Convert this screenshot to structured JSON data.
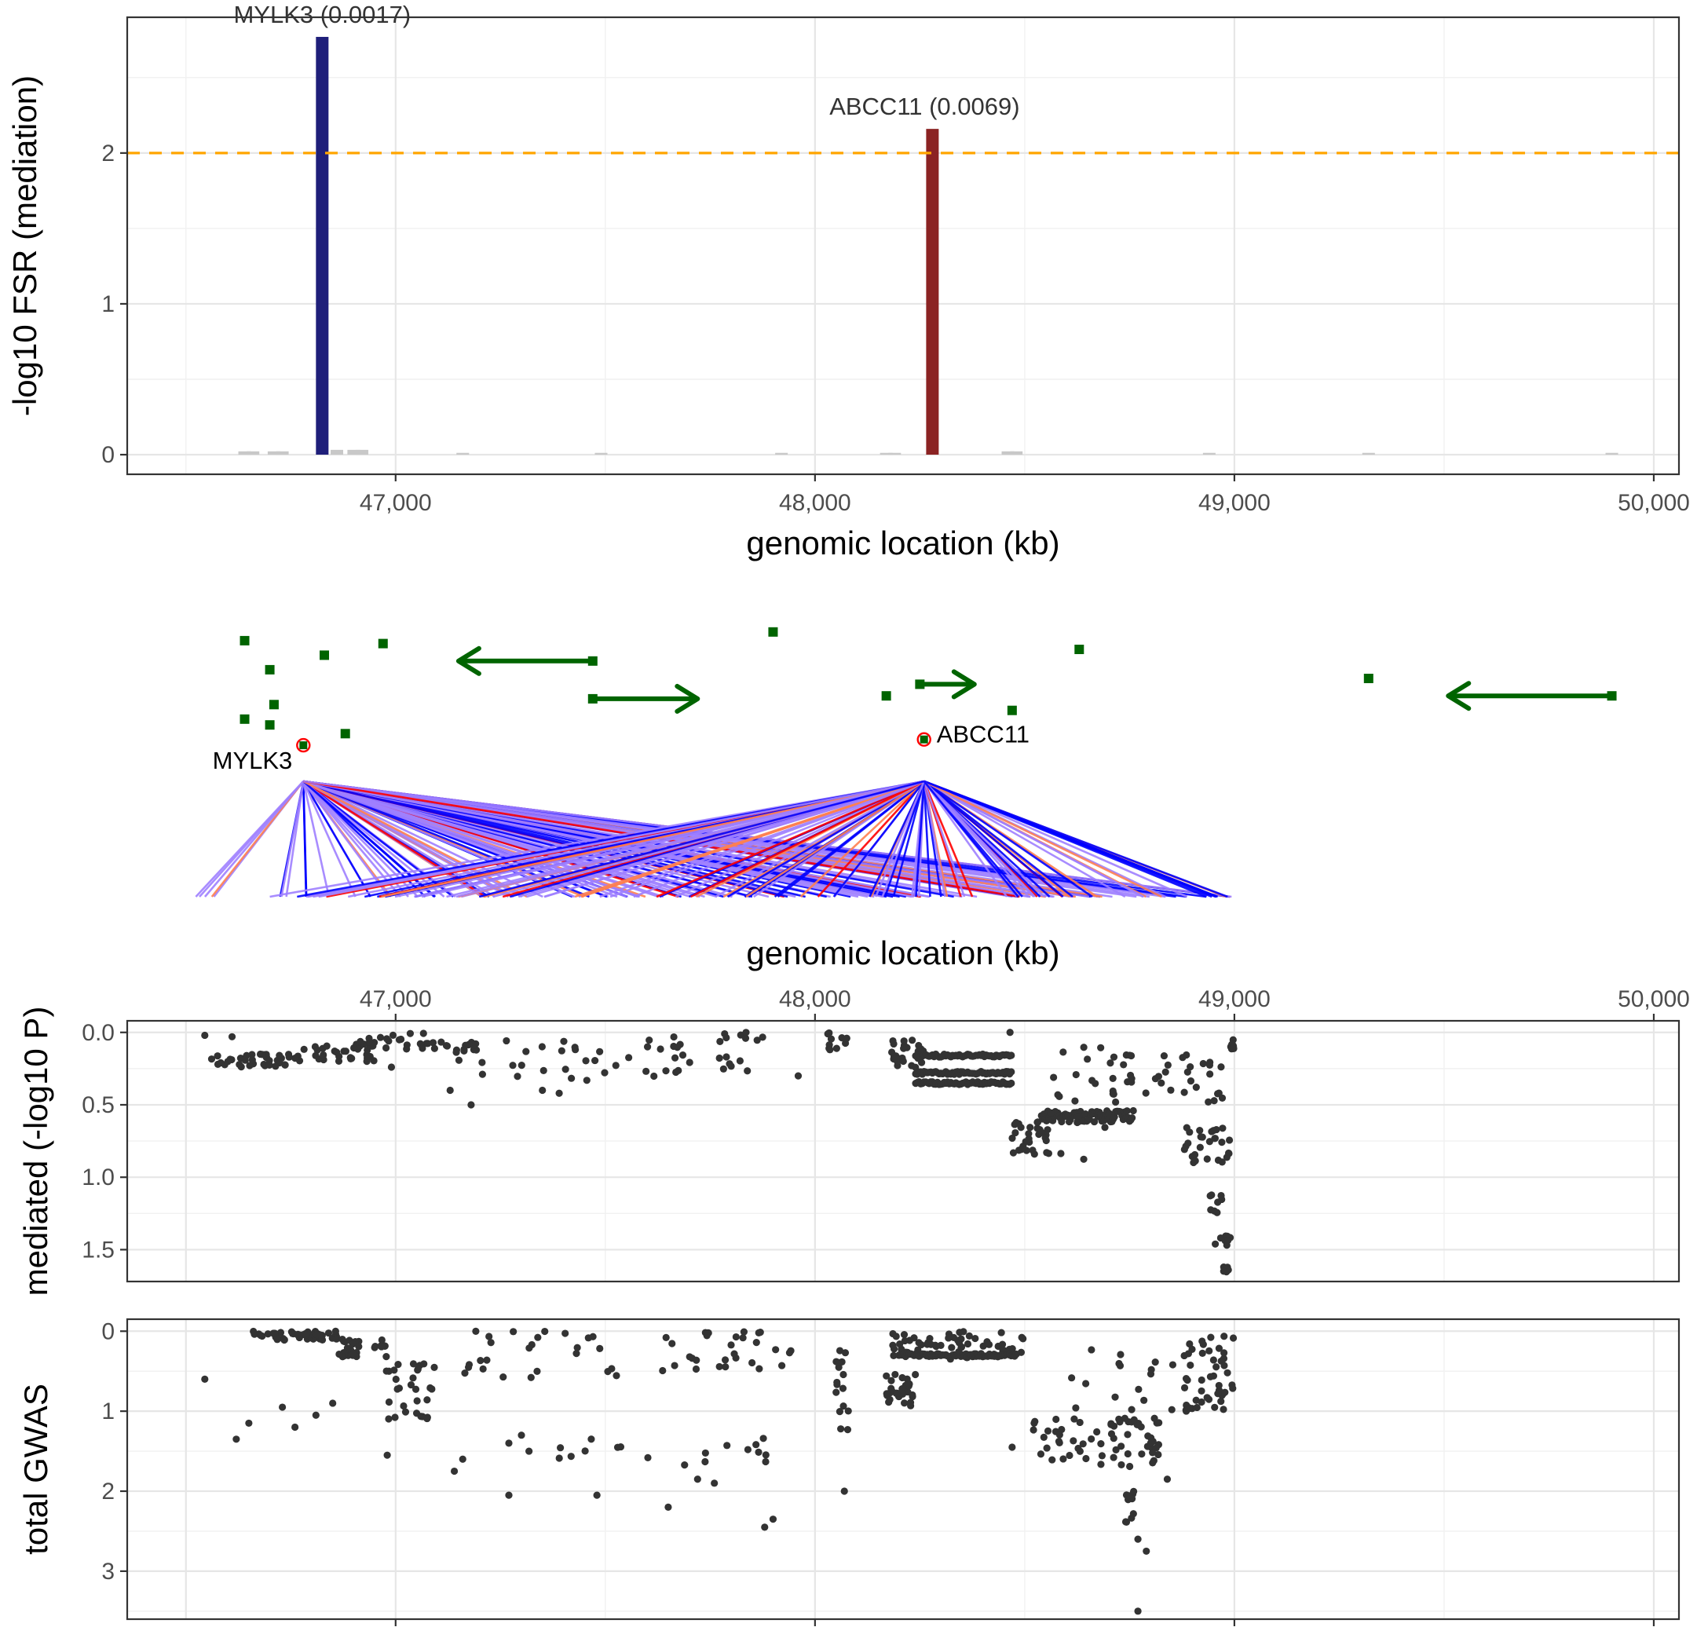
{
  "chart_data": [
    {
      "type": "bar",
      "panel": "mediation-fsr",
      "ylabel": "-log10 FSR (mediation)",
      "xlabel": "genomic location (kb)",
      "xlim": [
        46360,
        50060
      ],
      "ylim": [
        -0.13,
        2.9
      ],
      "x_ticks": [
        47000,
        48000,
        49000,
        50000
      ],
      "x_tick_labels": [
        "47,000",
        "48,000",
        "49,000",
        "50,000"
      ],
      "y_ticks": [
        0,
        1,
        2
      ],
      "y_tick_labels": [
        "0",
        "1",
        "2"
      ],
      "threshold": {
        "value": 2.0,
        "color": "#FFA500",
        "style": "dashed"
      },
      "grid": true,
      "bars": [
        {
          "gene": "MYLK3",
          "x": 46825,
          "value": 2.77,
          "label": "MYLK3 (0.0017)",
          "color": "#1F1F7A"
        },
        {
          "gene": "ABCC11",
          "x": 48280,
          "value": 2.16,
          "label": "ABCC11 (0.0069)",
          "color": "#8B2323"
        }
      ],
      "background_bars": {
        "color": "#C8C8C8",
        "x": [
          46640,
          46660,
          46710,
          46730,
          46860,
          46900,
          46920,
          47160,
          47490,
          47920,
          48170,
          48190,
          48460,
          48480,
          48940,
          49320,
          49900
        ],
        "values": [
          0.01,
          0.01,
          0.01,
          0.01,
          0.02,
          0.02,
          0.02,
          0.0,
          0.0,
          0.0,
          0.0,
          0.0,
          0.01,
          0.01,
          0.0,
          0.0,
          0.0
        ]
      }
    },
    {
      "type": "diagram",
      "panel": "gene-track",
      "gene_color": "#006400",
      "highlight_ring_color": "#FF0000",
      "genes": [
        {
          "x": 46640,
          "row": 0.7
        },
        {
          "x": 46700,
          "row": 1.7
        },
        {
          "x": 46830,
          "row": 1.2
        },
        {
          "x": 46970,
          "row": 0.8
        },
        {
          "x": 46640,
          "row": 3.4
        },
        {
          "x": 46710,
          "row": 2.9
        },
        {
          "x": 46700,
          "row": 3.6
        },
        {
          "x": 46880,
          "row": 3.9
        },
        {
          "x": 47900,
          "row": 0.4
        },
        {
          "x": 48170,
          "row": 2.6
        },
        {
          "x": 48470,
          "row": 3.1
        },
        {
          "x": 48630,
          "row": 1.0
        },
        {
          "x": 49320,
          "row": 2.0
        }
      ],
      "arrows": [
        {
          "start": 47470,
          "end": 47150,
          "row": 1.4
        },
        {
          "start": 47470,
          "end": 47720,
          "row": 2.7
        },
        {
          "start": 48250,
          "end": 48380,
          "row": 2.2
        },
        {
          "start": 49900,
          "end": 49510,
          "row": 2.6
        }
      ],
      "mediators": [
        {
          "name": "MYLK3",
          "x": 46780,
          "row": 4.3,
          "label_side": "left"
        },
        {
          "name": "ABCC11",
          "x": 48260,
          "row": 4.1,
          "label_side": "right"
        }
      ],
      "links": {
        "description_colors": [
          "#FF0000",
          "#FF7F50",
          "#0000FF",
          "#9F7FFF"
        ],
        "snp_range_kb": [
          46510,
          49000
        ]
      }
    },
    {
      "type": "scatter",
      "panel": "mediated",
      "ylabel": "mediated (-log10 P)",
      "xlabel": "genomic location (kb)",
      "x_axis_position": "top",
      "y_reversed": true,
      "xlim": [
        46360,
        50060
      ],
      "ylim": [
        -0.08,
        1.72
      ],
      "x_ticks": [
        47000,
        48000,
        49000,
        50000
      ],
      "x_tick_labels": [
        "47,000",
        "48,000",
        "49,000",
        "50,000"
      ],
      "y_ticks": [
        0.0,
        0.5,
        1.0,
        1.5
      ],
      "y_tick_labels": [
        "0.0",
        "0.5",
        "1.0",
        "1.5"
      ],
      "point_color": "#333333",
      "grid": true
    },
    {
      "type": "scatter",
      "panel": "total-gwas",
      "ylabel": "total GWAS",
      "y_reversed": true,
      "xlim": [
        46360,
        50060
      ],
      "ylim": [
        -0.15,
        3.6
      ],
      "x_ticks": [
        47000,
        48000,
        49000,
        50000
      ],
      "y_ticks": [
        0,
        1,
        2,
        3
      ],
      "y_tick_labels": [
        "0",
        "1",
        "2",
        "3"
      ],
      "point_color": "#333333",
      "grid": true
    }
  ]
}
